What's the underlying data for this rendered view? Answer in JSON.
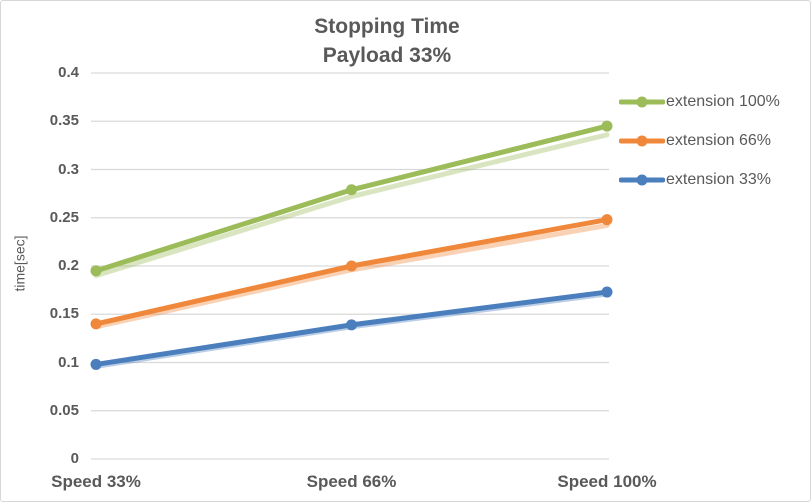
{
  "chart_data": {
    "type": "line",
    "title": "Stopping Time",
    "subtitle": "Payload 33%",
    "xlabel": "",
    "ylabel": "time[sec]",
    "categories": [
      "Speed 33%",
      "Speed 66%",
      "Speed 100%"
    ],
    "series": [
      {
        "name": "extension 100%",
        "color": "#9CBB59",
        "values": [
          0.195,
          0.279,
          0.345
        ],
        "shadow_values": [
          0.19,
          0.272,
          0.336
        ]
      },
      {
        "name": "extension 66%",
        "color": "#F0883C",
        "values": [
          0.14,
          0.2,
          0.248
        ],
        "shadow_values": [
          0.137,
          0.196,
          0.242
        ]
      },
      {
        "name": "extension 33%",
        "color": "#4A7EBD",
        "values": [
          0.098,
          0.139,
          0.173
        ],
        "shadow_values": [
          0.096,
          0.137,
          0.171
        ]
      }
    ],
    "ylim": [
      0,
      0.4
    ],
    "ytick_step": 0.05,
    "yticks": [
      "0",
      "0.05",
      "0.1",
      "0.15",
      "0.2",
      "0.25",
      "0.3",
      "0.35",
      "0.4"
    ],
    "grid": true,
    "legend_position": "right",
    "marker": "circle",
    "colors": {
      "text": "#595959",
      "grid": "#D9D9D9",
      "border": "#D7D7D7",
      "background": "#FFFFFF"
    }
  }
}
